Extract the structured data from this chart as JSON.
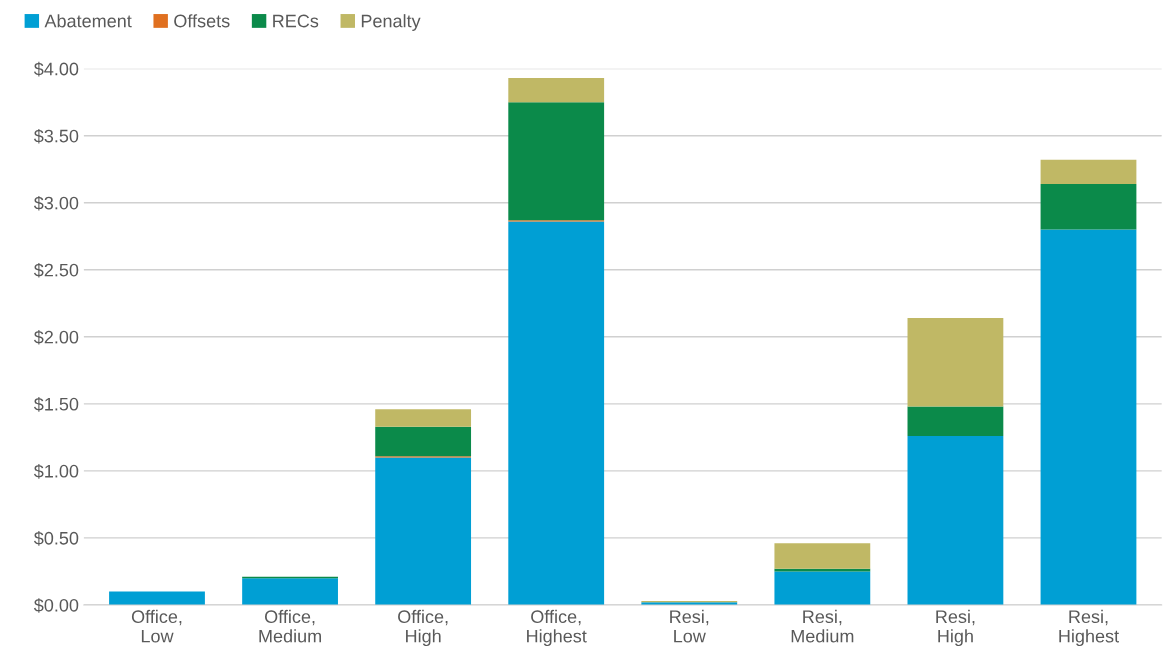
{
  "chart_data": {
    "type": "bar",
    "stacked": true,
    "categories": [
      "Office,\nLow",
      "Office,\nMedium",
      "Office,\nHigh",
      "Office,\nHighest",
      "Resi,\nLow",
      "Resi,\nMedium",
      "Resi,\nHigh",
      "Resi,\nHighest"
    ],
    "series": [
      {
        "name": "Abatement",
        "color": "#009fd4",
        "values": [
          0.1,
          0.2,
          1.1,
          2.86,
          0.02,
          0.25,
          1.26,
          2.8
        ]
      },
      {
        "name": "Offsets",
        "color": "#e07020",
        "values": [
          0,
          0,
          0.01,
          0.01,
          0,
          0,
          0,
          0
        ]
      },
      {
        "name": "RECs",
        "color": "#0b8a4a",
        "values": [
          0,
          0.01,
          0.22,
          0.88,
          0,
          0.02,
          0.22,
          0.34
        ]
      },
      {
        "name": "Penalty",
        "color": "#c0b865",
        "values": [
          0,
          0,
          0.13,
          0.18,
          0.01,
          0.19,
          0.66,
          0.18
        ]
      }
    ],
    "ylim": [
      0,
      4.0
    ],
    "yticks": [
      {
        "value": 0,
        "label": "$0.00"
      },
      {
        "value": 0.5,
        "label": "$0.50"
      },
      {
        "value": 1.0,
        "label": "$1.00"
      },
      {
        "value": 1.5,
        "label": "$1.50"
      },
      {
        "value": 2.0,
        "label": "$2.00"
      },
      {
        "value": 2.5,
        "label": "$2.50"
      },
      {
        "value": 3.0,
        "label": "$3.00"
      },
      {
        "value": 3.5,
        "label": "$3.50"
      },
      {
        "value": 4.0,
        "label": "$4.00"
      }
    ],
    "grid": "y",
    "legend": "top left"
  }
}
